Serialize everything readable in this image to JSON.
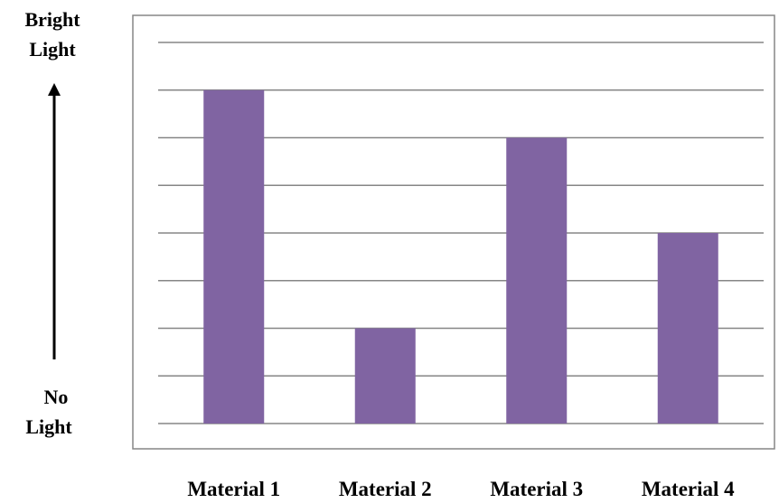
{
  "chart_data": {
    "type": "bar",
    "categories": [
      "Material 1",
      "Material 2",
      "Material 3",
      "Material 4"
    ],
    "values": [
      7,
      2,
      6,
      4
    ],
    "ylim": [
      0,
      8
    ],
    "grid": true,
    "bar_color": "#8064A2",
    "grid_color": "#868686",
    "frame_color": "#868686",
    "y_top_label": [
      "Bright",
      "Light"
    ],
    "y_bottom_label": [
      "No",
      "Light"
    ]
  }
}
